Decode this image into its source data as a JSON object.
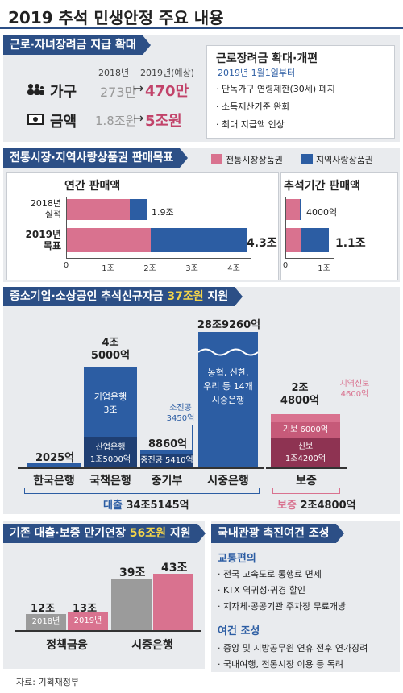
{
  "title": "2019 추석 민생안정 주요 내용",
  "colors": {
    "navy": "#2c4f86",
    "pink": "#d9728f",
    "blue": "#2c5da3",
    "gray": "#9b9b9b"
  },
  "s1": {
    "header": "근로·자녀장려금 지급 확대",
    "col_2018": "2018년",
    "col_2019": "2019년(예상)",
    "rows": [
      {
        "icon": "people-icon",
        "label": "가구",
        "v2018": "273만",
        "v2019": "470만"
      },
      {
        "icon": "money-icon",
        "label": "금액",
        "v2018": "1.8조원",
        "v2019": "5조원"
      }
    ],
    "box_title": "근로장려금 확대·개편",
    "box_sub": "2019년 1월1일부터",
    "box_items": [
      "단독가구 연령제한(30세) 폐지",
      "소득재산기준 완화",
      "최대 지급액 인상"
    ]
  },
  "s2": {
    "header": "전통시장·지역사랑상품권 판매목표",
    "legend_pink": "전통시장상품권",
    "legend_blue": "지역사랑상품권",
    "annual_title": "연간 판매액",
    "chuseok_title": "추석기간 판매액",
    "row1_label_a": "2018년",
    "row1_label_b": "실적",
    "row2_label_a": "2019년",
    "row2_label_b": "목표",
    "annual_v1": "1.9조",
    "annual_v2": "4.3조",
    "chuseok_v1": "4000억",
    "chuseok_v2": "1.1조",
    "annual_ticks": [
      "0",
      "1조",
      "2조",
      "3조",
      "4조"
    ],
    "chuseok_ticks": [
      "0",
      "1조"
    ]
  },
  "chart_data": [
    {
      "type": "bar",
      "title": "연간 판매액",
      "categories": [
        "2018년 실적",
        "2019년 목표"
      ],
      "series": [
        {
          "name": "전통시장상품권",
          "values": [
            1.5,
            2.0
          ]
        },
        {
          "name": "지역사랑상품권",
          "values": [
            0.4,
            2.3
          ]
        }
      ],
      "totals": [
        "1.9조",
        "4.3조"
      ],
      "xlim": [
        0,
        4.3
      ]
    },
    {
      "type": "bar",
      "title": "추석기간 판매액",
      "categories": [
        "2018년 실적",
        "2019년 목표"
      ],
      "series": [
        {
          "name": "전통시장상품권",
          "values": [
            0.35,
            0.4
          ]
        },
        {
          "name": "지역사랑상품권",
          "values": [
            0.05,
            0.7
          ]
        }
      ],
      "totals": [
        "4000억",
        "1.1조"
      ],
      "xlim": [
        0,
        1.1
      ]
    }
  ],
  "s3": {
    "header_pre": "중소기업·소상공인 추석신규자금 ",
    "header_hl": "37조원",
    "header_post": " 지원",
    "bars": [
      {
        "name": "한국은행",
        "value": "2025억"
      },
      {
        "name": "국책은행",
        "value_a": "4조",
        "value_b": "5000억",
        "inner1_a": "기업은행",
        "inner1_b": "3조",
        "inner2_a": "산업은행",
        "inner2_b": "1조5000억"
      },
      {
        "name": "중기부",
        "value": "8860억",
        "inner": "중진공 5410억",
        "side_a": "소진공",
        "side_b": "3450억"
      },
      {
        "name": "시중은행",
        "value": "28조9260억",
        "inner_a": "농협, 신한,",
        "inner_b": "우리 등 14개",
        "inner_c": "시중은행"
      },
      {
        "name": "보증",
        "value_a": "2조",
        "value_b": "4800억",
        "inner1": "기보 6000억",
        "inner2_a": "신보",
        "inner2_b": "1조4200억",
        "side_a": "지역신보",
        "side_b": "4600억"
      }
    ],
    "loan_label": "대출",
    "loan_total": "34조5145억",
    "guar_label": "보증",
    "guar_total": "2조4800억"
  },
  "s4": {
    "header_pre": "기존 대출·보증 만기연장 ",
    "header_hl": "56조원",
    "header_post": " 지원",
    "groups": [
      {
        "name": "정책금융",
        "v2018": "12조",
        "v2019": "13조"
      },
      {
        "name": "시중은행",
        "v2018": "39조",
        "v2019": "43조"
      }
    ],
    "lbl2018": "2018년",
    "lbl2019": "2019년"
  },
  "s5": {
    "header": "국내관광 촉진여건 조성",
    "sub1": "교통편의",
    "items1": [
      "전국 고속도로 통행료 면제",
      "KTX 역귀성·귀경 할인",
      "지자체·공공기관 주차장 무료개방"
    ],
    "sub2": "여건 조성",
    "items2": [
      "중앙 및 지방공무원 연휴 전후 연가장려",
      "국내여행, 전통시장 이용 등 독려"
    ]
  },
  "source": "자료: 기획재정부"
}
